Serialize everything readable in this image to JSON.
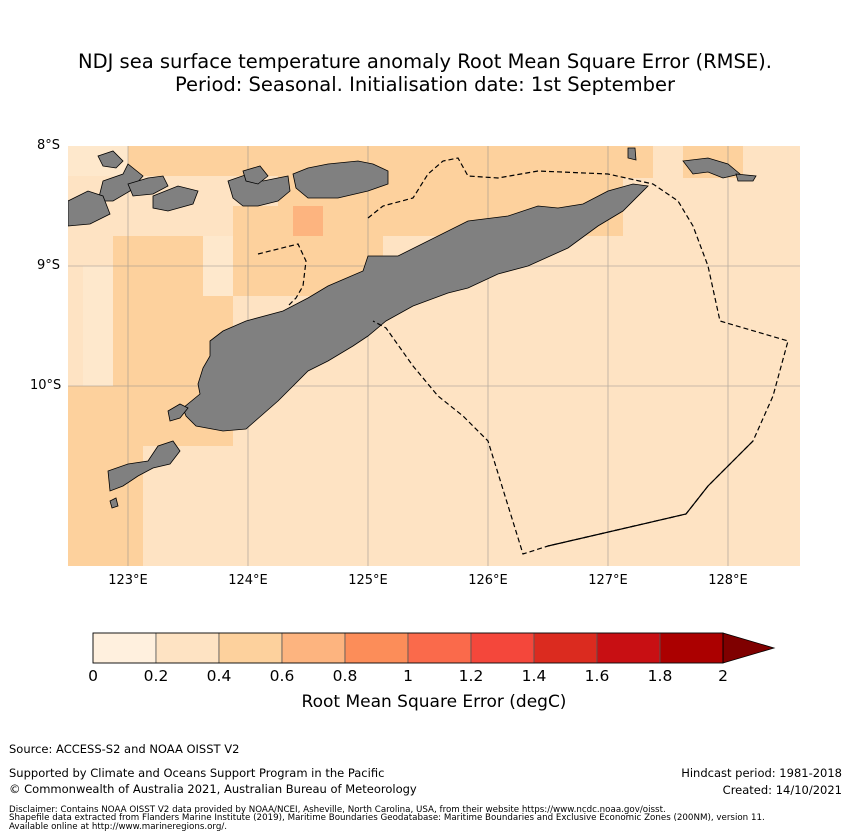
{
  "title": {
    "line1": "NDJ sea surface temperature anomaly Root Mean Square Error (RMSE).",
    "line2": "Period: Seasonal. Initialisation date: 1st September"
  },
  "map": {
    "lat_labels": [
      "8°S",
      "9°S",
      "10°S"
    ],
    "lon_labels": [
      "123°E",
      "124°E",
      "125°E",
      "126°E",
      "127°E",
      "128°E"
    ],
    "land_color": "#808080",
    "boundary_style": "dashed"
  },
  "colorbar": {
    "label": "Root Mean Square Error (degC)",
    "ticks": [
      "0",
      "0.2",
      "0.4",
      "0.6",
      "0.8",
      "1",
      "1.2",
      "1.4",
      "1.6",
      "1.8",
      "2"
    ],
    "colors": [
      "#fff0de",
      "#fee3c3",
      "#fdd19d",
      "#fdb47f",
      "#fc8d59",
      "#fa6a4b",
      "#f4473b",
      "#db2b1f",
      "#c80f13",
      "#ab0000",
      "#7f0000"
    ],
    "extend": "max"
  },
  "footer": {
    "source": "Source: ACCESS-S2 and NOAA OISST V2",
    "supported": "Supported by Climate and Oceans Support Program in the Pacific",
    "copyright": "© Commonwealth of Australia 2021, Australian Bureau of Meteorology",
    "hindcast": "Hindcast period: 1981-2018",
    "created": "Created: 14/10/2021",
    "disclaimer1": "Disclaimer: Contains NOAA OISST V2 data provided by NOAA/NCEI, Asheville, North Carolina, USA, from their website https://www.ncdc.noaa.gov/oisst.",
    "disclaimer2": "Shapefile data extracted from Flanders Marine Institute (2019), Maritime Boundaries Geodatabase: Maritime Boundaries and Exclusive Economic Zones (200NM), version 11.",
    "disclaimer3": "Available online at http://www.marineregions.org/."
  }
}
